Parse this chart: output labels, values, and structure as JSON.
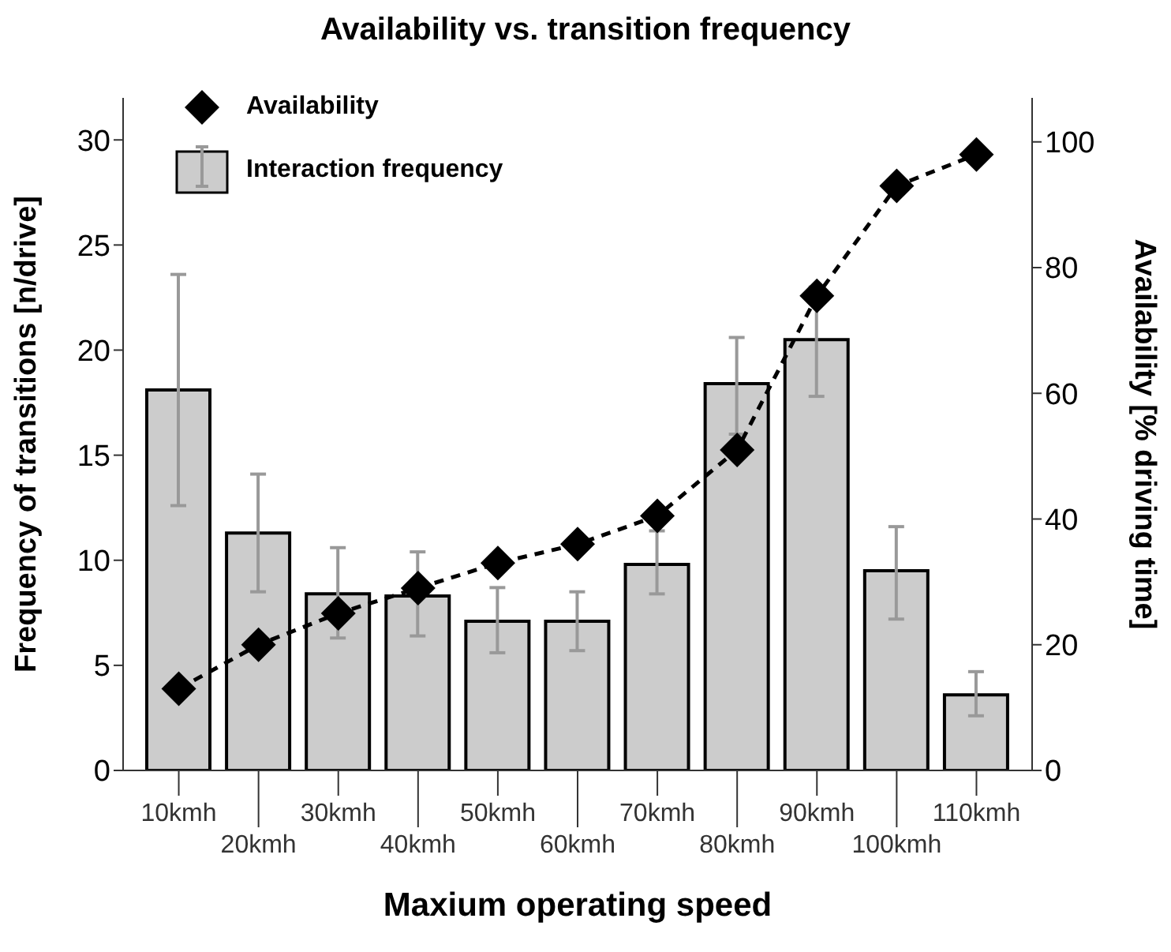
{
  "chart_data": {
    "type": "bar",
    "title": "Availability vs. transition frequency",
    "xlabel": "Maxium operating speed",
    "ylabel": "Frequency of transitions [n/drive]",
    "y2label": "Availability [% driving time]",
    "categories": [
      "10kmh",
      "20kmh",
      "30kmh",
      "40kmh",
      "50kmh",
      "60kmh",
      "70kmh",
      "80kmh",
      "90kmh",
      "100kmh",
      "110kmh"
    ],
    "series": [
      {
        "name": "Interaction frequency",
        "color": "#cccccc",
        "values": [
          18.1,
          11.3,
          8.4,
          8.3,
          7.1,
          7.1,
          9.8,
          18.4,
          20.5,
          9.5,
          3.6
        ],
        "errors": [
          [
            12.6,
            23.6
          ],
          [
            8.5,
            14.1
          ],
          [
            6.3,
            10.6
          ],
          [
            6.4,
            10.4
          ],
          [
            5.6,
            8.7
          ],
          [
            5.7,
            8.5
          ],
          [
            8.4,
            11.4
          ],
          [
            16.0,
            20.6
          ],
          [
            17.8,
            23.0
          ],
          [
            7.2,
            11.6
          ],
          [
            2.6,
            4.7
          ]
        ]
      },
      {
        "name": "Availability",
        "type": "line",
        "axis": "y2",
        "color": "#000000",
        "marker": "diamond",
        "line_style": "dashed",
        "values": [
          13,
          20,
          25,
          29,
          33,
          36,
          40.5,
          51,
          75.5,
          93,
          98
        ]
      }
    ],
    "ylim": [
      0,
      32
    ],
    "yticks": [
      0,
      5,
      10,
      15,
      20,
      25,
      30
    ],
    "y2lim": [
      0,
      107
    ],
    "y2ticks": [
      0,
      20,
      40,
      60,
      80,
      100
    ],
    "grid": false,
    "legend": "top left"
  }
}
